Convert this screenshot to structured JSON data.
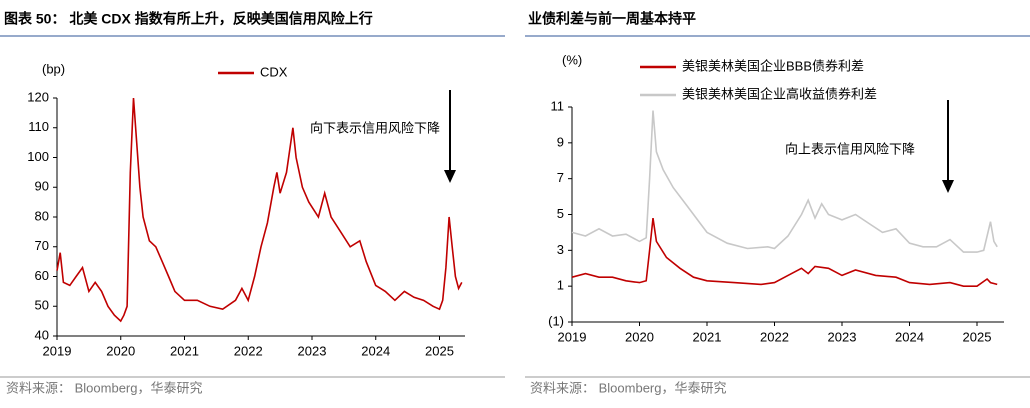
{
  "chart_data": [
    {
      "type": "line",
      "title": "图表 50： 北美 CDX 指数有所上升，反映美国信用风险上行",
      "source": "资料来源： Bloomberg，华泰研究",
      "y_label": "(bp)",
      "annotation": "向下表示信用风险下降",
      "xlim": [
        2019,
        2025.4
      ],
      "xticks": [
        2019,
        2020,
        2021,
        2022,
        2023,
        2024,
        2025
      ],
      "ylim": [
        40,
        120
      ],
      "yticks": [
        40,
        50,
        60,
        70,
        80,
        90,
        100,
        110,
        120
      ],
      "grid": false,
      "series": [
        {
          "name": "CDX",
          "color": "#c00000",
          "x": [
            2019.0,
            2019.05,
            2019.1,
            2019.2,
            2019.3,
            2019.4,
            2019.5,
            2019.6,
            2019.7,
            2019.8,
            2019.9,
            2020.0,
            2020.05,
            2020.1,
            2020.15,
            2020.2,
            2020.25,
            2020.3,
            2020.35,
            2020.45,
            2020.55,
            2020.65,
            2020.75,
            2020.85,
            2021.0,
            2021.2,
            2021.4,
            2021.6,
            2021.8,
            2021.9,
            2022.0,
            2022.1,
            2022.2,
            2022.3,
            2022.4,
            2022.45,
            2022.5,
            2022.6,
            2022.7,
            2022.75,
            2022.85,
            2022.95,
            2023.1,
            2023.2,
            2023.3,
            2023.45,
            2023.6,
            2023.75,
            2023.85,
            2024.0,
            2024.15,
            2024.3,
            2024.45,
            2024.6,
            2024.75,
            2024.9,
            2025.0,
            2025.05,
            2025.1,
            2025.15,
            2025.2,
            2025.25,
            2025.3,
            2025.35
          ],
          "values": [
            62,
            68,
            58,
            57,
            60,
            63,
            55,
            58,
            55,
            50,
            47,
            45,
            47,
            50,
            95,
            120,
            105,
            90,
            80,
            72,
            70,
            65,
            60,
            55,
            52,
            52,
            50,
            49,
            52,
            56,
            52,
            60,
            70,
            78,
            90,
            95,
            88,
            95,
            110,
            100,
            90,
            85,
            80,
            88,
            80,
            75,
            70,
            72,
            65,
            57,
            55,
            52,
            55,
            53,
            52,
            50,
            49,
            52,
            63,
            80,
            70,
            60,
            56,
            58
          ]
        }
      ]
    },
    {
      "type": "line",
      "title": "业债利差与前一周基本持平",
      "source": "资料来源： Bloomberg，华泰研究",
      "y_label": "(%)",
      "annotation": "向上表示信用风险下降",
      "xlim": [
        2019,
        2025.4
      ],
      "xticks": [
        2019,
        2020,
        2021,
        2022,
        2023,
        2024,
        2025
      ],
      "ylim": [
        -1,
        11
      ],
      "yticks": [
        {
          "value": -1,
          "label": "(1)"
        },
        1,
        3,
        5,
        7,
        9,
        11
      ],
      "grid": false,
      "series": [
        {
          "name": "美银美林美国企业BBB债券利差",
          "color": "#c00000",
          "x": [
            2019.0,
            2019.2,
            2019.4,
            2019.6,
            2019.8,
            2020.0,
            2020.1,
            2020.15,
            2020.2,
            2020.25,
            2020.4,
            2020.6,
            2020.8,
            2021.0,
            2021.4,
            2021.8,
            2022.0,
            2022.2,
            2022.4,
            2022.5,
            2022.6,
            2022.8,
            2023.0,
            2023.2,
            2023.5,
            2023.8,
            2024.0,
            2024.3,
            2024.6,
            2024.8,
            2025.0,
            2025.15,
            2025.2,
            2025.3
          ],
          "values": [
            1.5,
            1.7,
            1.5,
            1.5,
            1.3,
            1.2,
            1.3,
            3,
            4.8,
            3.5,
            2.6,
            2,
            1.5,
            1.3,
            1.2,
            1.1,
            1.2,
            1.6,
            2,
            1.7,
            2.1,
            2,
            1.6,
            1.9,
            1.6,
            1.5,
            1.2,
            1.1,
            1.2,
            1,
            1,
            1.4,
            1.2,
            1.1
          ]
        },
        {
          "name": "美银美林美国企业高收益债券利差",
          "color": "#c8c8c8",
          "x": [
            2019.0,
            2019.2,
            2019.4,
            2019.6,
            2019.8,
            2020.0,
            2020.1,
            2020.15,
            2020.2,
            2020.25,
            2020.35,
            2020.5,
            2020.7,
            2020.9,
            2021.0,
            2021.3,
            2021.6,
            2021.9,
            2022.0,
            2022.2,
            2022.4,
            2022.5,
            2022.6,
            2022.7,
            2022.8,
            2023.0,
            2023.2,
            2023.4,
            2023.6,
            2023.8,
            2024.0,
            2024.2,
            2024.4,
            2024.6,
            2024.8,
            2025.0,
            2025.1,
            2025.2,
            2025.25,
            2025.3
          ],
          "values": [
            4,
            3.8,
            4.2,
            3.8,
            3.9,
            3.5,
            3.7,
            7,
            10.8,
            8.5,
            7.5,
            6.5,
            5.5,
            4.5,
            4,
            3.4,
            3.1,
            3.2,
            3.1,
            3.8,
            5,
            5.8,
            4.8,
            5.6,
            5,
            4.7,
            5,
            4.5,
            4,
            4.2,
            3.4,
            3.2,
            3.2,
            3.6,
            2.9,
            2.9,
            3,
            4.6,
            3.5,
            3.2
          ]
        }
      ]
    }
  ]
}
